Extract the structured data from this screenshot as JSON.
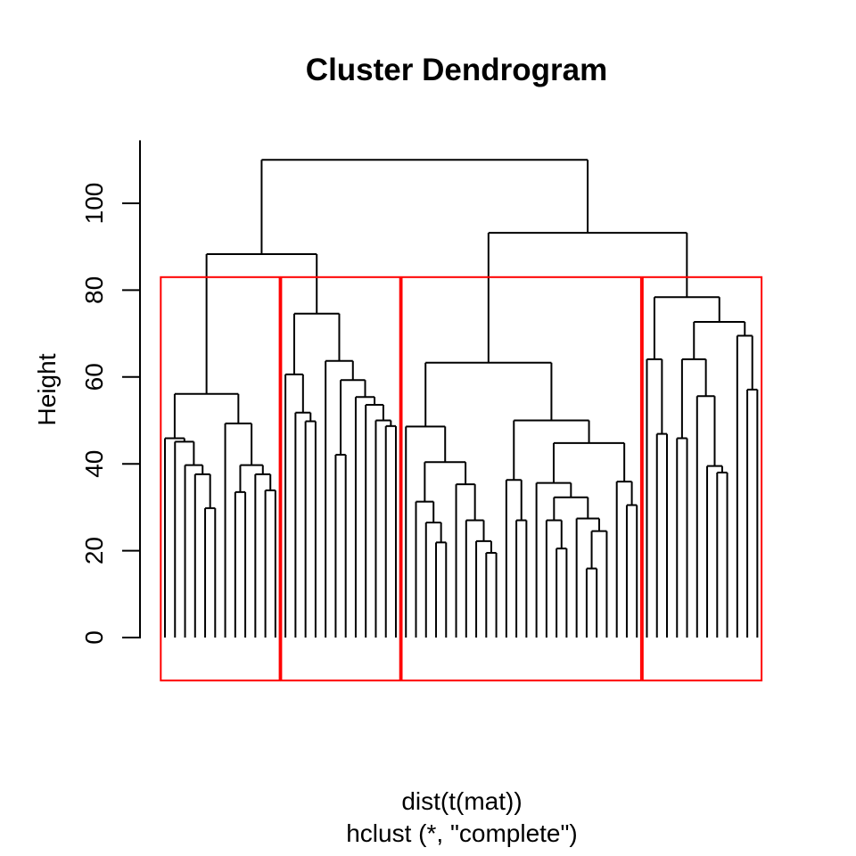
{
  "figure": {
    "title": "Cluster Dendrogram",
    "ylabel": "Height",
    "xlabel_line1": "dist(t(mat))",
    "xlabel_line2": "hclust (*, \"complete\")"
  },
  "chart_data": {
    "type": "dendrogram",
    "title": "Cluster Dendrogram",
    "ylabel": "Height",
    "xlabel": "dist(t(mat))\nhclust (*, \"complete\")",
    "y_ticks": [
      0,
      20,
      40,
      60,
      80,
      100
    ],
    "ylim": [
      0,
      114.5
    ],
    "n_leaves": 60,
    "root_height": 110.0,
    "grid": false,
    "line_color": "#000000",
    "cluster_box_color": "#FF0000",
    "box_top": 83.0,
    "box_bottom": -9.9,
    "clusters": [
      {
        "from": 1,
        "to": 12
      },
      {
        "from": 13,
        "to": 24
      },
      {
        "from": 25,
        "to": 48
      },
      {
        "from": 49,
        "to": 60
      }
    ],
    "tree": [
      110.0,
      [
        88.3,
        [
          56.1,
          [
            45.9,
            0,
            [
              45.1,
              0,
              [
                39.7,
                0,
                [
                  37.6,
                  0,
                  [
                    29.8,
                    0,
                    0
                  ]
                ]
              ]
            ]
          ],
          [
            49.3,
            0,
            [
              39.7,
              [
                33.5,
                0,
                0
              ],
              [
                37.6,
                0,
                [
                  33.9,
                  0,
                  0
                ]
              ]
            ]
          ]
        ],
        [
          74.6,
          [
            60.6,
            0,
            [
              51.8,
              0,
              [
                49.8,
                0,
                0
              ]
            ]
          ],
          [
            63.7,
            0,
            [
              59.3,
              [
                42.1,
                0,
                0
              ],
              [
                55.4,
                0,
                [
                  53.6,
                  0,
                  [
                    50.0,
                    0,
                    [
                      48.7,
                      0,
                      0
                    ]
                  ]
                ]
              ]
            ]
          ]
        ]
      ],
      [
        93.2,
        [
          63.3,
          [
            48.6,
            0,
            [
              40.4,
              [
                31.3,
                0,
                [
                  26.5,
                  0,
                  [
                    21.9,
                    0,
                    0
                  ]
                ]
              ],
              [
                35.3,
                0,
                [
                  27.0,
                  0,
                  [
                    22.2,
                    0,
                    [
                      19.5,
                      0,
                      0
                    ]
                  ]
                ]
              ]
            ]
          ],
          [
            50.0,
            [
              36.3,
              0,
              [
                27.0,
                0,
                0
              ]
            ],
            [
              44.8,
              [
                35.6,
                0,
                [
                  32.3,
                  [
                    27.0,
                    0,
                    [
                      20.5,
                      0,
                      0
                    ]
                  ],
                  [
                    27.4,
                    0,
                    [
                      24.5,
                      [
                        15.9,
                        0,
                        0
                      ],
                      0
                    ]
                  ]
                ]
              ],
              [
                35.9,
                0,
                [
                  30.5,
                  0,
                  0
                ]
              ]
            ]
          ]
        ],
        [
          78.4,
          [
            64.1,
            0,
            [
              46.9,
              0,
              0
            ]
          ],
          [
            72.7,
            [
              64.1,
              [
                45.9,
                0,
                0
              ],
              [
                55.6,
                0,
                [
                  39.5,
                  0,
                  [
                    38.0,
                    0,
                    0
                  ]
                ]
              ]
            ],
            [
              69.5,
              0,
              [
                57.1,
                0,
                0
              ]
            ]
          ]
        ]
      ]
    ]
  }
}
